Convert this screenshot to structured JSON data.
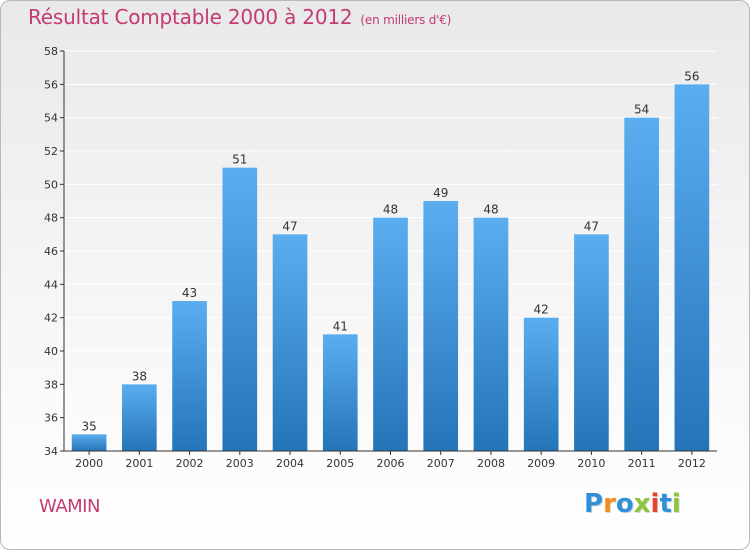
{
  "title": "Résultat Comptable 2000 à 2012",
  "unit": "(en milliers d'€)",
  "city": "WAMIN",
  "logo": {
    "letters": [
      "P",
      "r",
      "o",
      "x",
      "i",
      "t",
      "i"
    ],
    "colors": [
      "#2f8fd8",
      "#f28c1e",
      "#2f8fd8",
      "#8cc63f",
      "#e8412c",
      "#2f8fd8",
      "#8cc63f"
    ]
  },
  "colors": {
    "bar_top": "#5aaef0",
    "bar_bottom": "#2474b8",
    "title": "#c43a73",
    "axis": "#333333",
    "grid": "#ffffff"
  },
  "chart_data": {
    "type": "bar",
    "categories": [
      "2000",
      "2001",
      "2002",
      "2003",
      "2004",
      "2005",
      "2006",
      "2007",
      "2008",
      "2009",
      "2010",
      "2011",
      "2012"
    ],
    "values": [
      35,
      38,
      43,
      51,
      47,
      41,
      48,
      49,
      48,
      42,
      47,
      54,
      56
    ],
    "ylim": [
      34,
      58
    ],
    "yticks": [
      34,
      36,
      38,
      40,
      42,
      44,
      46,
      48,
      50,
      52,
      54,
      56,
      58
    ],
    "grid": true,
    "data_labels": true
  }
}
